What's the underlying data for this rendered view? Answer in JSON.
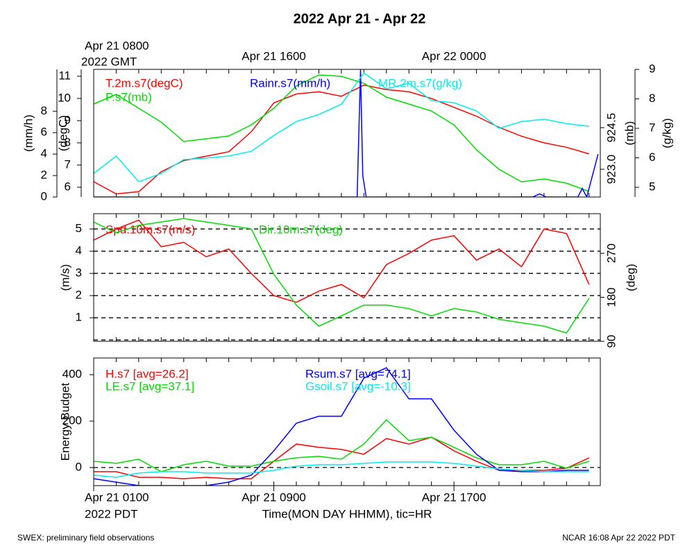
{
  "chart_data": {
    "type": "line",
    "title": "2022 Apr 21 - Apr 22",
    "footer_left": "SWEX: preliminary field observations",
    "footer_right": "NCAR 16:08 Apr 22 2022 PDT",
    "x": [
      0,
      1,
      2,
      3,
      4,
      5,
      6,
      7,
      8,
      9,
      10,
      11,
      12,
      13,
      14,
      15,
      16,
      17,
      18,
      19,
      20,
      21,
      22
    ],
    "xlim": [
      0,
      22.5
    ],
    "minor_xticks": [
      0,
      1,
      2,
      3,
      4,
      5,
      6,
      7,
      8,
      9,
      10,
      11,
      12,
      13,
      14,
      15,
      16,
      17,
      18,
      19,
      20,
      21,
      22
    ],
    "xticks": [
      {
        "value": 0,
        "label": "Apr 21 0100"
      },
      {
        "value": 8,
        "label": "Apr 21 0900"
      },
      {
        "value": 16,
        "label": "Apr 21 1700"
      }
    ],
    "xlabel_zone": "2022 PDT",
    "xlabel": "Time(MON DAY HHMM), tic=HR",
    "top_xticks": [
      {
        "value": 0,
        "label": "Apr 21 0800"
      },
      {
        "value": 8,
        "label": "Apr 21 1600"
      },
      {
        "value": 16,
        "label": "Apr 22 0000"
      }
    ],
    "top_xlabel_zone": "2022 GMT",
    "panels": [
      {
        "axes": [
          {
            "label": "(mm/h)",
            "side": "left",
            "ylim": [
              0,
              11.9
            ],
            "yticks": [
              0,
              2,
              4,
              6,
              8
            ]
          },
          {
            "label": "(degC)",
            "side": "left",
            "ylim": [
              5.56,
              11.31
            ],
            "yticks": [
              6,
              7,
              8,
              9,
              10,
              11
            ]
          },
          {
            "label": "(mb)",
            "side": "right",
            "ylim": [
              922.0,
              926.6
            ],
            "yticks": [
              {
                "value": 923,
                "label": "923.0"
              },
              {
                "value": 924.5,
                "label": "924.5"
              }
            ]
          },
          {
            "label": "(g/kg)",
            "side": "right",
            "ylim": [
              4.67,
              9.0
            ],
            "yticks": [
              5,
              6,
              7,
              8,
              9
            ]
          }
        ],
        "series": [
          {
            "name": "T.2m.s7(degC)",
            "color": "#ff0000",
            "axis": 1,
            "values": [
              6.25,
              5.7,
              5.8,
              6.7,
              7.2,
              7.4,
              7.6,
              8.5,
              9.8,
              10.2,
              10.3,
              10.1,
              10.6,
              10.4,
              10.3,
              10.0,
              9.6,
              9.2,
              8.7,
              8.3,
              8.0,
              7.8,
              7.5
            ]
          },
          {
            "name": "P.s7(mb)",
            "color": "#00dd00",
            "axis": 2,
            "values": [
              925.35,
              925.7,
              925.2,
              924.7,
              924.0,
              924.1,
              924.2,
              924.6,
              925.2,
              926.0,
              926.4,
              926.35,
              926.1,
              925.6,
              925.35,
              925.1,
              924.6,
              923.7,
              923.0,
              922.55,
              922.65,
              922.5,
              922.2
            ]
          },
          {
            "name": "Rainr.s7(mm/h)",
            "color": "#0000ff",
            "axis": 0,
            "x": [
              0,
              11.7,
              11.85,
              11.95,
              12.1,
              19.5,
              19.8,
              20.1,
              21.5,
              21.7,
              21.9,
              22.4
            ],
            "values": [
              0,
              0,
              11.9,
              2,
              0,
              0,
              0.3,
              0,
              0,
              0.8,
              0,
              4
            ]
          },
          {
            "name": "MR.2m.s7(g/kg)",
            "color": "#00eeee",
            "axis": 3,
            "values": [
              5.47,
              6.06,
              5.19,
              5.47,
              5.94,
              5.99,
              6.06,
              6.22,
              6.76,
              7.23,
              7.47,
              7.82,
              8.88,
              8.34,
              8.53,
              7.94,
              7.87,
              7.59,
              7.0,
              7.23,
              7.31,
              7.16,
              7.07
            ]
          }
        ]
      },
      {
        "axes": [
          {
            "label": "(m/s)",
            "side": "left",
            "ylim": [
              -0.06,
              5.69
            ],
            "yticks": [
              1,
              2,
              3,
              4,
              5
            ]
          },
          {
            "label": "(deg)",
            "side": "right",
            "ylim": [
              90,
              351
            ],
            "yticks": [
              90,
              180,
              270
            ]
          }
        ],
        "hlines": [
          0,
          1,
          2,
          3,
          4,
          5
        ],
        "series": [
          {
            "name": "Spd.10m.s7(m/s)",
            "color": "#ff0000",
            "axis": 0,
            "values": [
              4.5,
              5.0,
              5.4,
              4.2,
              4.4,
              3.75,
              4.1,
              3.0,
              2.0,
              1.7,
              2.2,
              2.5,
              1.9,
              3.4,
              3.9,
              4.5,
              4.7,
              3.6,
              4.1,
              3.3,
              5.0,
              4.8,
              2.5
            ]
          },
          {
            "name": "Dir.10m.s7(deg)",
            "color": "#00dd00",
            "axis": 1,
            "values": [
              334,
              312,
              327,
              334,
              341,
              334,
              327,
              320,
              227,
              164,
              121,
              142,
              164,
              164,
              157,
              142,
              157,
              150,
              135,
              128,
              121,
              107,
              178
            ]
          }
        ]
      },
      {
        "axes": [
          {
            "label": "Energy Budget",
            "side": "left",
            "ylim": [
              -78,
              472
            ],
            "yticks": [
              0,
              200,
              400
            ]
          }
        ],
        "hlines": [
          0
        ],
        "series": [
          {
            "name": "H.s7 [avg=26.2]",
            "color": "#ff0000",
            "axis": 0,
            "values": [
              -18,
              -18,
              -42,
              -42,
              -48,
              -42,
              -48,
              -48,
              27,
              101,
              87,
              78,
              57,
              125,
              101,
              131,
              72,
              27,
              -12,
              -12,
              -12,
              -3,
              42
            ]
          },
          {
            "name": "LE.s7 [avg=37.1]",
            "color": "#00dd00",
            "axis": 0,
            "values": [
              27,
              18,
              36,
              -18,
              12,
              27,
              6,
              6,
              27,
              42,
              48,
              36,
              101,
              206,
              116,
              131,
              87,
              42,
              12,
              12,
              27,
              -3,
              27
            ]
          },
          {
            "name": "Rsum.s7 [avg=74.1]",
            "color": "#0000ff",
            "axis": 0,
            "values": [
              -48,
              -63,
              -78,
              -78,
              -78,
              -78,
              -63,
              -33,
              72,
              191,
              221,
              221,
              385,
              430,
              296,
              296,
              161,
              57,
              -12,
              -18,
              -18,
              -12,
              -12
            ]
          },
          {
            "name": "Gsoil.s7 [avg=-10.3]",
            "color": "#00eeee",
            "axis": 0,
            "values": [
              -33,
              -42,
              -24,
              -18,
              -18,
              -24,
              -24,
              -24,
              -12,
              6,
              12,
              12,
              18,
              24,
              24,
              24,
              18,
              6,
              -6,
              -12,
              -18,
              -18,
              -18
            ]
          }
        ]
      }
    ]
  }
}
